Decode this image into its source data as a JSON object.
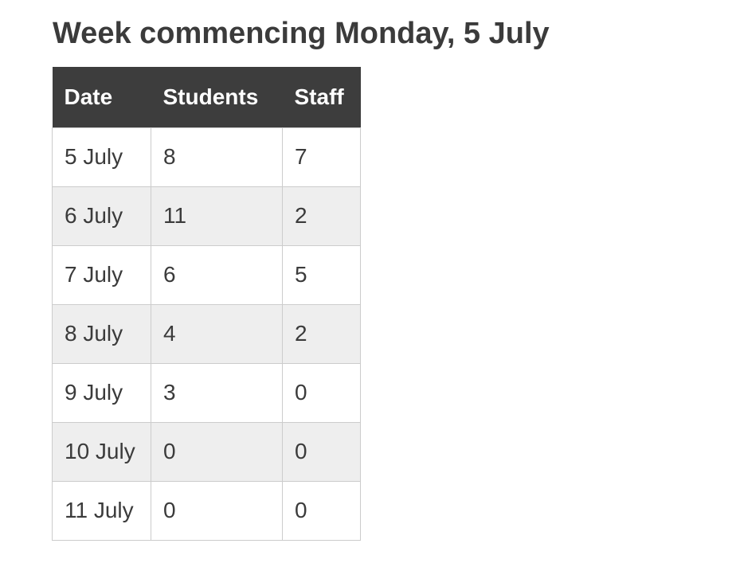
{
  "page": {
    "title": "Week commencing Monday, 5 July"
  },
  "colors": {
    "page_background": "#ffffff",
    "header_background": "#3d3d3d",
    "header_text": "#ffffff",
    "row_background": "#ffffff",
    "row_alt_background": "#eeeeee",
    "cell_border": "#cccccc",
    "body_text": "#3b3b3b"
  },
  "table": {
    "columns": [
      "Date",
      "Students",
      "Staff"
    ],
    "rows": [
      {
        "date": "5 July",
        "students": "8",
        "staff": "7"
      },
      {
        "date": "6 July",
        "students": "11",
        "staff": "2"
      },
      {
        "date": "7 July",
        "students": "6",
        "staff": "5"
      },
      {
        "date": "8 July",
        "students": "4",
        "staff": "2"
      },
      {
        "date": "9 July",
        "students": "3",
        "staff": "0"
      },
      {
        "date": "10 July",
        "students": "0",
        "staff": "0"
      },
      {
        "date": "11 July",
        "students": "0",
        "staff": "0"
      }
    ]
  },
  "chart_data": {
    "type": "table",
    "title": "Week commencing Monday, 5 July",
    "columns": [
      "Date",
      "Students",
      "Staff"
    ],
    "categories": [
      "5 July",
      "6 July",
      "7 July",
      "8 July",
      "9 July",
      "10 July",
      "11 July"
    ],
    "series": [
      {
        "name": "Students",
        "values": [
          8,
          11,
          6,
          4,
          3,
          0,
          0
        ]
      },
      {
        "name": "Staff",
        "values": [
          7,
          2,
          5,
          2,
          0,
          0,
          0
        ]
      }
    ]
  }
}
